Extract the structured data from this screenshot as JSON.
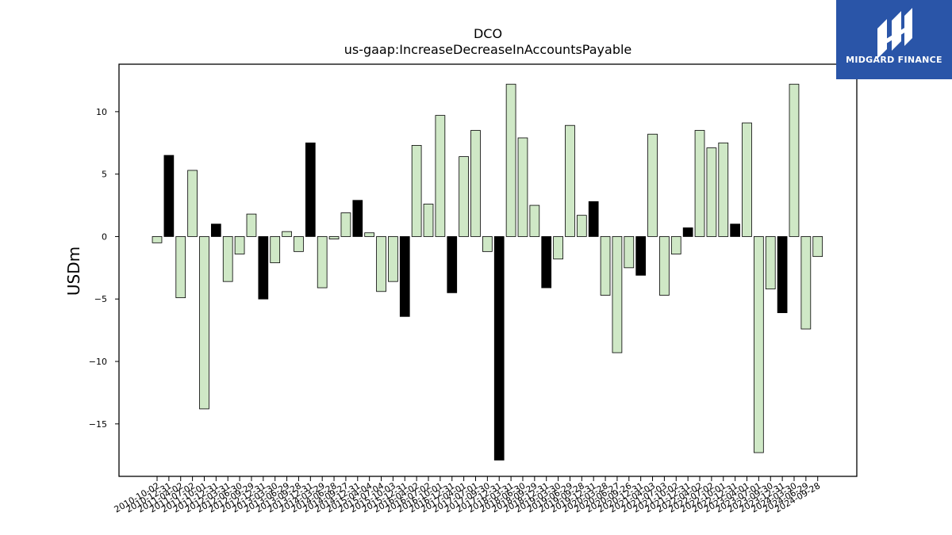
{
  "chart_data": {
    "type": "bar",
    "title": "DCO",
    "subtitle": "us-gaap:IncreaseDecreaseInAccountsPayable",
    "xlabel": "",
    "ylabel": "USDm",
    "ylim": [
      -19.2,
      13.8
    ],
    "yticks": [
      10,
      5,
      0,
      -5,
      -10,
      -15
    ],
    "ytick_labels": [
      "10",
      "5",
      "0",
      "−5",
      "−10",
      "−15"
    ],
    "grid": false,
    "colors": {
      "default": "#cfe8c6",
      "highlight": "#000000",
      "edge": "#000000"
    },
    "categories": [
      "2010-10-02",
      "2010-12-31",
      "2011-04-02",
      "2011-07-02",
      "2011-10-01",
      "2011-12-31",
      "2012-03-31",
      "2012-06-30",
      "2012-09-29",
      "2012-12-31",
      "2013-03-30",
      "2013-06-29",
      "2013-09-28",
      "2013-12-31",
      "2014-03-29",
      "2014-06-28",
      "2014-09-27",
      "2014-12-31",
      "2015-04-04",
      "2015-07-04",
      "2015-10-03",
      "2015-12-31",
      "2016-04-02",
      "2016-07-02",
      "2016-10-01",
      "2016-12-31",
      "2017-04-01",
      "2017-07-01",
      "2017-09-30",
      "2017-12-31",
      "2018-03-31",
      "2018-06-30",
      "2018-09-29",
      "2018-12-31",
      "2019-03-30",
      "2019-06-29",
      "2019-09-28",
      "2019-12-31",
      "2020-03-28",
      "2020-06-27",
      "2020-09-26",
      "2020-12-31",
      "2021-04-03",
      "2021-07-03",
      "2021-10-02",
      "2021-12-31",
      "2022-04-02",
      "2022-07-02",
      "2022-10-01",
      "2022-12-31",
      "2023-04-01",
      "2023-07-01",
      "2023-09-30",
      "2023-12-31",
      "2024-03-30",
      "2024-06-29",
      "2024-09-28"
    ],
    "values": [
      -0.5,
      6.5,
      -4.9,
      5.3,
      -13.8,
      1.0,
      -3.6,
      -1.4,
      1.8,
      -5.0,
      -2.1,
      0.4,
      -1.2,
      7.5,
      -4.1,
      -0.2,
      1.9,
      2.9,
      0.3,
      -4.4,
      -3.6,
      -6.4,
      7.3,
      2.6,
      9.7,
      -4.5,
      6.4,
      8.5,
      -1.2,
      -17.9,
      12.2,
      7.9,
      2.5,
      -4.1,
      -1.8,
      8.9,
      1.7,
      2.8,
      -4.7,
      -9.3,
      -2.5,
      -3.1,
      8.2,
      -4.7,
      -1.4,
      0.7,
      8.5,
      7.1,
      7.5,
      1.0,
      9.1,
      -17.3,
      -4.2,
      -6.1,
      12.2,
      -7.4,
      -1.6
    ],
    "highlight": [
      false,
      true,
      false,
      false,
      false,
      true,
      false,
      false,
      false,
      true,
      false,
      false,
      false,
      true,
      false,
      false,
      false,
      true,
      false,
      false,
      false,
      true,
      false,
      false,
      false,
      true,
      false,
      false,
      false,
      true,
      false,
      false,
      false,
      true,
      false,
      false,
      false,
      true,
      false,
      false,
      false,
      true,
      false,
      false,
      false,
      true,
      false,
      false,
      false,
      true,
      false,
      false,
      false,
      true,
      false,
      false,
      false
    ]
  },
  "logo": {
    "text": "MIDGARD FINANCE"
  }
}
